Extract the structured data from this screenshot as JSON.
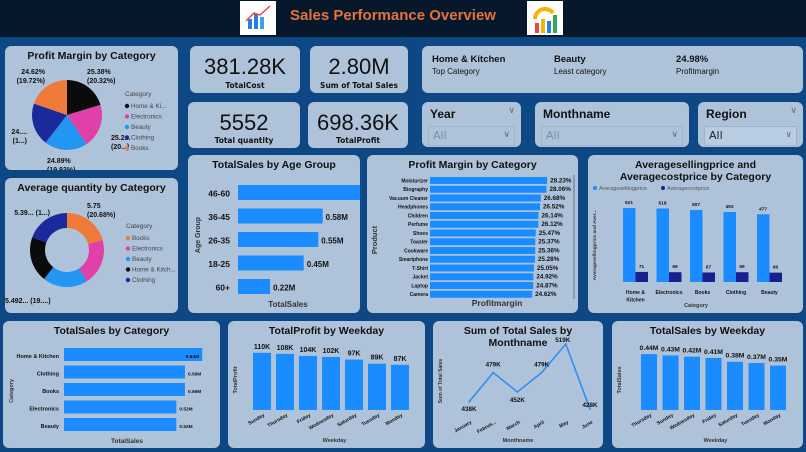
{
  "header": {
    "title": "Sales Performance Overview",
    "logo_left": "analytics-chart-logo",
    "logo_right": "growth-gauge-logo"
  },
  "kpis": [
    {
      "value": "381.28K",
      "label": "TotalCost"
    },
    {
      "value": "2.80M",
      "label": "Sum of Total Sales"
    },
    {
      "value": "5552",
      "label": "Total quantity"
    },
    {
      "value": "698.36K",
      "label": "TotalProfit"
    }
  ],
  "info_card": [
    {
      "value": "Home & Kitchen",
      "label": "Top Category"
    },
    {
      "value": "Beauty",
      "label": "Least category"
    },
    {
      "value": "24.98%",
      "label": "Profitmargin"
    }
  ],
  "slicers": [
    {
      "label": "Year",
      "value": "All"
    },
    {
      "label": "Monthname",
      "value": "All"
    },
    {
      "label": "Region",
      "value": "All"
    }
  ],
  "colors": {
    "bar": "#1a8cff",
    "navy": "#17208f",
    "panel": "#aec3da",
    "background": "#0d4784",
    "title": "#e2733a"
  },
  "chart_data": [
    {
      "id": "pie",
      "type": "pie",
      "title": "Profit Margin by Category",
      "legend_title": "Category",
      "legend_placement": "right",
      "slices": [
        {
          "name": "Home & Ki...",
          "value": 25.38,
          "label": "25.38%",
          "label2": "(20.32%)",
          "color": "#0b0b0b"
        },
        {
          "name": "Electronics",
          "value": 25.25,
          "label": "25.2...",
          "label2": "(20...)",
          "color": "#e040a8"
        },
        {
          "name": "Beauty",
          "value": 24.89,
          "label": "24.89%",
          "label2": "(19.93%)",
          "color": "#2196f3"
        },
        {
          "name": "Clothing",
          "value": 24.71,
          "label": "24....",
          "label2": "(1...)",
          "color": "#1a2a9c"
        },
        {
          "name": "Books",
          "value": 24.62,
          "label": "24.62%",
          "label2": "(19.72%)",
          "color": "#ef7a3a"
        }
      ]
    },
    {
      "id": "donut",
      "type": "pie",
      "title": "Average quantity by Category",
      "legend_title": "Category",
      "legend_placement": "right",
      "slices": [
        {
          "name": "Books",
          "value": 5.75,
          "label": "5.75",
          "label2": "(20.68%)",
          "color": "#ef7a3a"
        },
        {
          "name": "Electronics",
          "value": 5.62,
          "label": "",
          "label2": "",
          "color": "#e040a8"
        },
        {
          "name": "Beauty",
          "value": 5.49,
          "label": "5.492... (19....)",
          "label2": "",
          "color": "#2196f3"
        },
        {
          "name": "Home & Kitch...",
          "value": 5.55,
          "label": "",
          "label2": "",
          "color": "#0b0b0b"
        },
        {
          "name": "Clothing",
          "value": 5.39,
          "label": "5.39... (1...)",
          "label2": "",
          "color": "#1a2a9c"
        }
      ]
    },
    {
      "id": "age",
      "type": "bar",
      "orientation": "horizontal",
      "title": "TotalSales by Age Group",
      "xlabel": "TotalSales",
      "ylabel": "Age Group",
      "categories": [
        "46-60",
        "36-45",
        "26-35",
        "18-25",
        "60+"
      ],
      "values": [
        0.99,
        0.58,
        0.55,
        0.45,
        0.22
      ],
      "labels": [
        "0.99M",
        "0.58M",
        "0.55M",
        "0.45M",
        "0.22M"
      ]
    },
    {
      "id": "pm",
      "type": "bar",
      "orientation": "horizontal",
      "title": "Profit Margin by Category",
      "xlabel": "Profitmargin",
      "ylabel": "Product",
      "categories": [
        "Moisturizer",
        "Biography",
        "Vacuum Cleaner",
        "Headphones",
        "Children",
        "Perfume",
        "Shoes",
        "Toaster",
        "Cookware",
        "Smartphone",
        "T-Shirt",
        "Jacket",
        "Laptop",
        "Camera"
      ],
      "values": [
        28.23,
        28.06,
        26.68,
        26.52,
        26.14,
        26.12,
        25.47,
        25.37,
        25.36,
        25.28,
        25.05,
        24.92,
        24.87,
        24.62
      ],
      "labels": [
        "28.23%",
        "28.06%",
        "26.68%",
        "26.52%",
        "26.14%",
        "26.12%",
        "25.47%",
        "25.37%",
        "25.36%",
        "25.28%",
        "25.05%",
        "24.92%",
        "24.87%",
        "24.62%"
      ]
    },
    {
      "id": "asp",
      "type": "bar",
      "orientation": "vertical",
      "title": "Averagesellingprice and Averagecostprice by Category",
      "xlabel": "Category",
      "ylabel": "Averagesellingprice and Aver...",
      "legend_placement": "top-left",
      "categories": [
        "Home & Kitchen",
        "Electronics",
        "Books",
        "Clothing",
        "Beauty"
      ],
      "series": [
        {
          "name": "Averagesellingprice",
          "values": [
            521,
            518,
            507,
            493,
            477
          ]
        },
        {
          "name": "Averagecostprice",
          "values": [
            71,
            69,
            67,
            69,
            66
          ]
        }
      ]
    },
    {
      "id": "salescat",
      "type": "bar",
      "orientation": "horizontal",
      "title": "TotalSales by Category",
      "xlabel": "TotalSales",
      "ylabel": "Category",
      "categories": [
        "Home & Kitchen",
        "Clothing",
        "Books",
        "Electronics",
        "Beauty"
      ],
      "values": [
        0.64,
        0.56,
        0.56,
        0.52,
        0.52
      ],
      "labels": [
        "0.64M",
        "0.56M",
        "0.56M",
        "0.52M",
        "0.52M"
      ]
    },
    {
      "id": "profitwd",
      "type": "bar",
      "orientation": "vertical",
      "title": "TotalProfit by Weekday",
      "xlabel": "Weekday",
      "ylabel": "TotalProfit",
      "categories": [
        "Sunday",
        "Thursday",
        "Friday",
        "Wednesday",
        "Saturday",
        "Tuesday",
        "Monday"
      ],
      "values": [
        110,
        108,
        104,
        102,
        97,
        89,
        87
      ],
      "labels": [
        "110K",
        "108K",
        "104K",
        "102K",
        "97K",
        "89K",
        "87K"
      ]
    },
    {
      "id": "month",
      "type": "line",
      "title": "Sum of Total Sales by Monthname",
      "xlabel": "Monthname",
      "ylabel": "Sum of Total Sales",
      "categories": [
        "January",
        "Februa...",
        "March",
        "April",
        "May",
        "June"
      ],
      "values": [
        438,
        479,
        452,
        479,
        519,
        428
      ],
      "labels": [
        "438K",
        "479K",
        "452K",
        "479K",
        "519K",
        "428K"
      ]
    },
    {
      "id": "saleswd",
      "type": "bar",
      "orientation": "vertical",
      "title": "TotalSales by Weekday",
      "xlabel": "Weekday",
      "ylabel": "TotalSales",
      "categories": [
        "Thursday",
        "Sunday",
        "Wednesday",
        "Friday",
        "Saturday",
        "Tuesday",
        "Monday"
      ],
      "values": [
        0.44,
        0.43,
        0.42,
        0.41,
        0.38,
        0.37,
        0.35
      ],
      "labels": [
        "0.44M",
        "0.43M",
        "0.42M",
        "0.41M",
        "0.38M",
        "0.37M",
        "0.35M"
      ]
    }
  ]
}
